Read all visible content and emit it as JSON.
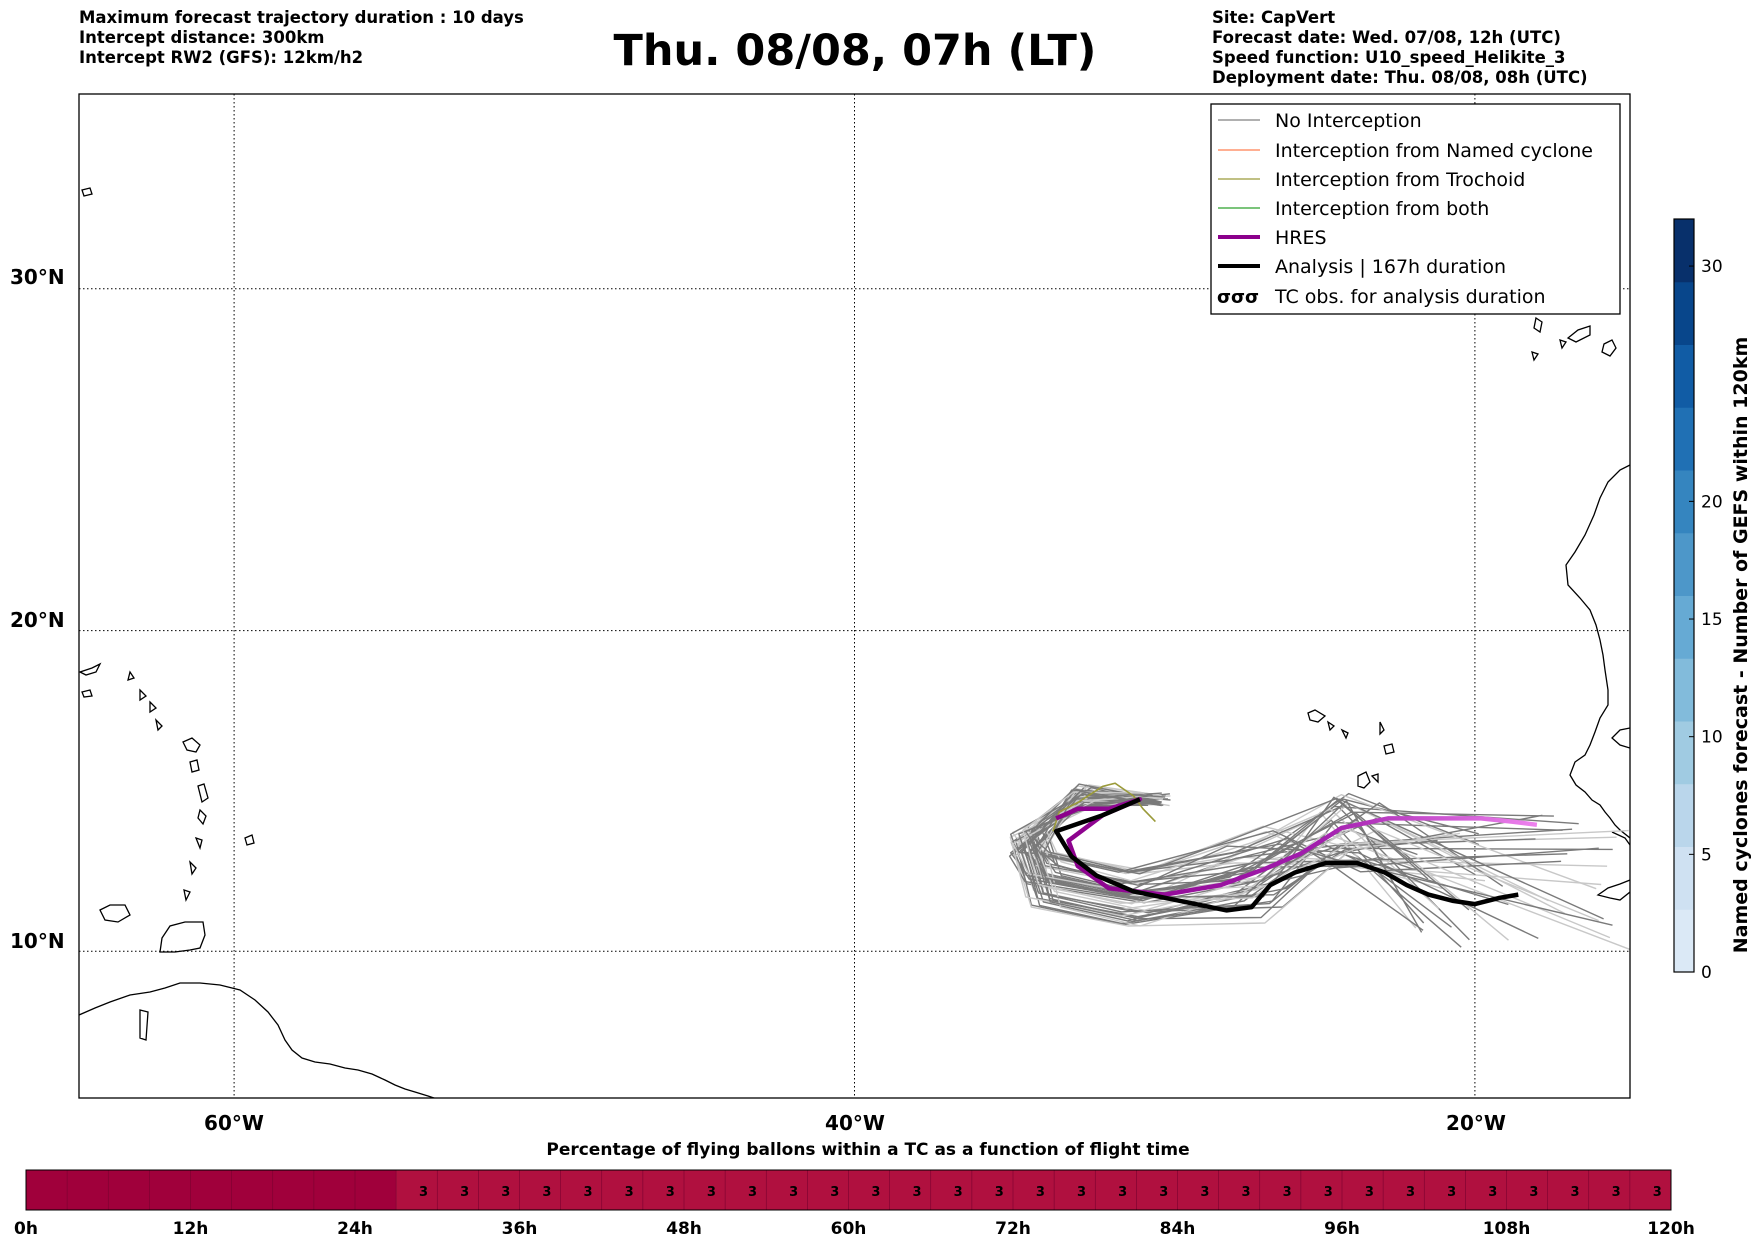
{
  "header": {
    "left": [
      "Maximum forecast trajectory duration : 10 days",
      "Intercept distance: 300km",
      "Intercept RW2 (GFS):  12km/h2"
    ],
    "title": "Thu. 08/08, 07h (LT)",
    "right": [
      "Site: CapVert",
      "Forecast date: Wed. 07/08, 12h (UTC)",
      "Speed function: U10_speed_Helikite_3",
      "Deployment date: Thu. 08/08, 08h (UTC)"
    ]
  },
  "map": {
    "lon_range": [
      -65,
      -15
    ],
    "lat_range": [
      5.3,
      35.3
    ],
    "lat_ticks": [
      {
        "value": 30,
        "label": "30°N"
      },
      {
        "value": 20,
        "label": "20°N"
      },
      {
        "value": 10,
        "label": "10°N"
      }
    ],
    "lon_ticks": [
      {
        "value": -60,
        "label": "60°W"
      },
      {
        "value": -40,
        "label": "40°W"
      },
      {
        "value": -20,
        "label": "20°W"
      }
    ],
    "grid": "dotted"
  },
  "legend": {
    "placement": "top-right",
    "items": [
      {
        "label": "No Interception",
        "color": "#808080",
        "style": "thin"
      },
      {
        "label": "Interception from Named cyclone",
        "color": "#ff7f50",
        "style": "thin"
      },
      {
        "label": "Interception from Trochoid",
        "color": "#9a9a3a",
        "style": "thin"
      },
      {
        "label": "Interception from both",
        "color": "#2ca02c",
        "style": "thin"
      },
      {
        "label": "HRES",
        "color": "#8b008b",
        "style": "thick"
      },
      {
        "label": "Analysis | 167h duration",
        "color": "#000000",
        "style": "thick"
      },
      {
        "label": "TC obs. for analysis duration",
        "color": "#000000",
        "style": "symbol",
        "symbol": "σσσ"
      }
    ]
  },
  "trajectories": {
    "hres": {
      "color_start": "#8b008b",
      "color_end": "#ee82ee",
      "lonlat": [
        [
          -33.5,
          14.2
        ],
        [
          -32.8,
          14.5
        ],
        [
          -31.8,
          14.5
        ],
        [
          -30.8,
          14.8
        ],
        [
          -32,
          14.3
        ],
        [
          -33.1,
          13.5
        ],
        [
          -32.8,
          12.7
        ],
        [
          -31.8,
          12
        ],
        [
          -30,
          11.8
        ],
        [
          -28.2,
          12.1
        ],
        [
          -26.8,
          12.6
        ],
        [
          -25.6,
          13.1
        ],
        [
          -24.3,
          13.9
        ],
        [
          -22.8,
          14.2
        ],
        [
          -21,
          14.2
        ],
        [
          -19.8,
          14.2
        ],
        [
          -18.8,
          14.1
        ],
        [
          -18,
          14
        ]
      ]
    },
    "analysis": {
      "color": "#000000",
      "lonlat": [
        [
          -30.8,
          14.8
        ],
        [
          -32,
          14.3
        ],
        [
          -33.5,
          13.8
        ],
        [
          -33,
          13
        ],
        [
          -32.2,
          12.4
        ],
        [
          -31,
          11.9
        ],
        [
          -29.5,
          11.6
        ],
        [
          -28,
          11.3
        ],
        [
          -27.2,
          11.4
        ],
        [
          -26.6,
          12.1
        ],
        [
          -25.8,
          12.5
        ],
        [
          -24.8,
          12.8
        ],
        [
          -23.8,
          12.8
        ],
        [
          -22.9,
          12.5
        ],
        [
          -22.2,
          12.1
        ],
        [
          -21.5,
          11.8
        ],
        [
          -20.7,
          11.6
        ],
        [
          -20,
          11.5
        ],
        [
          -19.2,
          11.7
        ],
        [
          -18.6,
          11.8
        ]
      ]
    },
    "trochoid": {
      "color": "#9a9a3a",
      "lonlat": [
        [
          -33.6,
          13.8
        ],
        [
          -33.4,
          14.4
        ],
        [
          -32.8,
          14.7
        ],
        [
          -32,
          15.2
        ],
        [
          -31.6,
          15.3
        ],
        [
          -31,
          14.9
        ],
        [
          -30.7,
          14.5
        ],
        [
          -30.3,
          14.1
        ]
      ]
    }
  },
  "colorbar": {
    "label": "Named cyclones forecast - Number of GEFS within 120km",
    "ticks": [
      0,
      5,
      10,
      15,
      20,
      30
    ],
    "range": [
      0,
      32
    ],
    "colors": [
      "#dbe9f6",
      "#cfe1f2",
      "#bad6eb",
      "#a0cbe2",
      "#82bbdb",
      "#66aad4",
      "#4d97c9",
      "#3585bf",
      "#2070b4",
      "#115ca5",
      "#08468b",
      "#08306b"
    ]
  },
  "timeline": {
    "title": "Percentage of flying ballons within a TC as a function of flight time",
    "tick_labels": [
      "0h",
      "12h",
      "24h",
      "36h",
      "48h",
      "60h",
      "72h",
      "84h",
      "96h",
      "108h",
      "120h"
    ],
    "max_hours": 120,
    "no_value_until_hour": 27,
    "cell_value": "3",
    "segment_hours": 3,
    "colors": {
      "empty": "#a0003b",
      "filled": "#b0103f"
    }
  }
}
